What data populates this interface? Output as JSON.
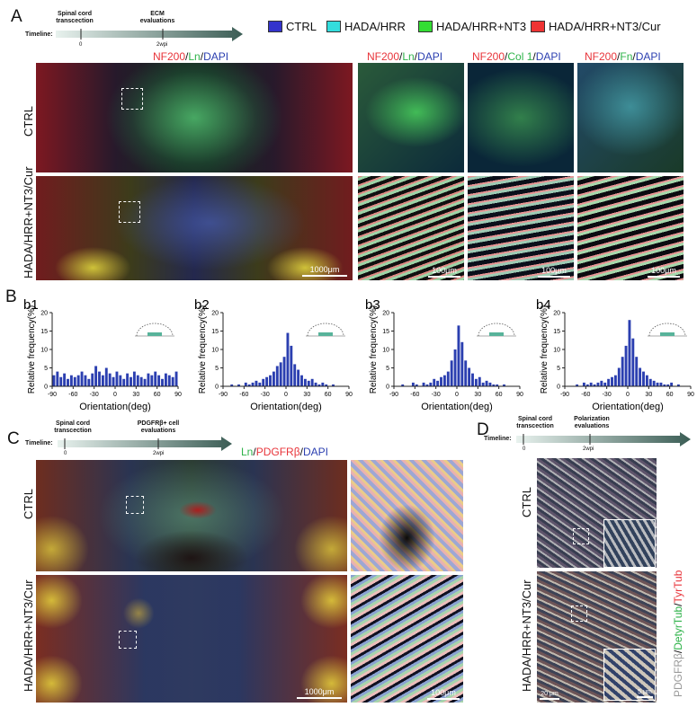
{
  "panels": {
    "A": "A",
    "B": "B",
    "C": "C",
    "D": "D"
  },
  "timeline_a": {
    "label": "Timeline:",
    "event1": "Spinal cord\ntranscection",
    "event2": "ECM\nevaluations",
    "tick0": "0",
    "tick1": "2wpi"
  },
  "timeline_c": {
    "label": "Timeline:",
    "event1": "Spinal cord\ntranscection",
    "event2": "PDGFRβ+ cell\nevaluations",
    "tick0": "0",
    "tick1": "2wpi"
  },
  "timeline_d": {
    "label": "Timeline:",
    "event1": "Spinal cord\ntranscection",
    "event2": "Polarization\nevaluations",
    "tick0": "0",
    "tick1": "2wpi"
  },
  "legend": [
    {
      "label": "CTRL",
      "color": "#3333cc"
    },
    {
      "label": "HADA/HRR",
      "color": "#33dddd"
    },
    {
      "label": "HADA/HRR+NT3",
      "color": "#33dd33"
    },
    {
      "label": "HADA/HRR+NT3/Cur",
      "color": "#ee3333"
    }
  ],
  "rows": {
    "ctrl": "CTRL",
    "treated": "HADA/HRR+NT3/Cur"
  },
  "stains_a": {
    "main": {
      "a": "NF200",
      "b": "/",
      "c": "Ln",
      "d": "/",
      "e": "DAPI"
    },
    "col1": {
      "a": "NF200",
      "b": "/",
      "c": "Ln",
      "d": "/",
      "e": "DAPI"
    },
    "col2": {
      "a": "NF200",
      "b": "/",
      "c": "Col 1",
      "d": "/",
      "e": "DAPI"
    },
    "col3": {
      "a": "NF200",
      "b": "/",
      "c": "Fn",
      "d": "/",
      "e": "DAPI"
    }
  },
  "stain_c": {
    "a": "Ln",
    "b": "/",
    "c": "PDGFRβ",
    "d": "/",
    "e": "DAPI"
  },
  "stain_d": {
    "a": "PDGFRβ",
    "b": "/",
    "c": "DetyrTub",
    "d": "/",
    "e": "TyrTub"
  },
  "colors": {
    "red": "#e8343a",
    "green": "#2fb34a",
    "blue": "#2b3fb0",
    "grey": "#9a9a9a",
    "axis": "#222222"
  },
  "scalebars": {
    "a_main": "1000μm",
    "a_z1": "100μm",
    "a_z2": "100μm",
    "a_z3": "100μm",
    "c_main": "1000μm",
    "c_zoom": "100μm",
    "d_main": "20 μm",
    "d_inset": "5 μm"
  },
  "chart_data": [
    {
      "type": "bar",
      "panel": "b1",
      "xlabel": "Orientation(deg)",
      "ylabel": "Relative frequency(%)",
      "xlim": [
        -90,
        90
      ],
      "ylim": [
        0,
        20
      ],
      "xticks": [
        -90,
        -60,
        -30,
        0,
        30,
        60,
        90
      ],
      "yticks": [
        0,
        5,
        10,
        15,
        20
      ],
      "x": [
        -90,
        -85,
        -80,
        -75,
        -70,
        -65,
        -60,
        -55,
        -50,
        -45,
        -40,
        -35,
        -30,
        -25,
        -20,
        -15,
        -10,
        -5,
        0,
        5,
        10,
        15,
        20,
        25,
        30,
        35,
        40,
        45,
        50,
        55,
        60,
        65,
        70,
        75,
        80,
        85
      ],
      "values": [
        3,
        4,
        2.5,
        3.5,
        2,
        3,
        2.5,
        3,
        4,
        3,
        2,
        3.5,
        5.5,
        4,
        3,
        5,
        3.5,
        2.5,
        4,
        3,
        2,
        3.5,
        2.5,
        4,
        3,
        2.5,
        2,
        3.5,
        3,
        4,
        3,
        2,
        3.5,
        3,
        2.5,
        4
      ]
    },
    {
      "type": "bar",
      "panel": "b2",
      "xlabel": "Orientation(deg)",
      "ylabel": "Relative frequency(%)",
      "xlim": [
        -90,
        90
      ],
      "ylim": [
        0,
        20
      ],
      "xticks": [
        -90,
        -60,
        -30,
        0,
        30,
        60,
        90
      ],
      "yticks": [
        0,
        5,
        10,
        15,
        20
      ],
      "x": [
        -90,
        -85,
        -80,
        -75,
        -70,
        -65,
        -60,
        -55,
        -50,
        -45,
        -40,
        -35,
        -30,
        -25,
        -20,
        -15,
        -10,
        -5,
        0,
        5,
        10,
        15,
        20,
        25,
        30,
        35,
        40,
        45,
        50,
        55,
        60,
        65,
        70,
        75,
        80,
        85
      ],
      "values": [
        0,
        0,
        0.5,
        0,
        0.5,
        0,
        1,
        0.5,
        1,
        1.5,
        1,
        2,
        2.5,
        3,
        4,
        5.5,
        6.5,
        8,
        14.5,
        11,
        6,
        4.5,
        3,
        2,
        1.5,
        2,
        1,
        0.5,
        1,
        0.5,
        0,
        0.5,
        0,
        0,
        0,
        0
      ]
    },
    {
      "type": "bar",
      "panel": "b3",
      "xlabel": "Orientation(deg)",
      "ylabel": "Relative frequency(%)",
      "xlim": [
        -90,
        90
      ],
      "ylim": [
        0,
        20
      ],
      "xticks": [
        -90,
        -60,
        -30,
        0,
        30,
        60,
        90
      ],
      "yticks": [
        0,
        5,
        10,
        15,
        20
      ],
      "x": [
        -90,
        -85,
        -80,
        -75,
        -70,
        -65,
        -60,
        -55,
        -50,
        -45,
        -40,
        -35,
        -30,
        -25,
        -20,
        -15,
        -10,
        -5,
        0,
        5,
        10,
        15,
        20,
        25,
        30,
        35,
        40,
        45,
        50,
        55,
        60,
        65,
        70,
        75,
        80,
        85
      ],
      "values": [
        0,
        0,
        0.5,
        0,
        0,
        1,
        0.5,
        0,
        1,
        0.5,
        1,
        2,
        1.5,
        2.5,
        3,
        4,
        7,
        10,
        16.5,
        12,
        7,
        5,
        3.5,
        2,
        2.5,
        1,
        1.5,
        1,
        0.5,
        0.5,
        0,
        0.5,
        0,
        0,
        0,
        0
      ]
    },
    {
      "type": "bar",
      "panel": "b4",
      "xlabel": "Orientation(deg)",
      "ylabel": "Relative frequency(%)",
      "xlim": [
        -90,
        90
      ],
      "ylim": [
        0,
        20
      ],
      "xticks": [
        -90,
        -60,
        -30,
        0,
        30,
        60,
        90
      ],
      "yticks": [
        0,
        5,
        10,
        15,
        20
      ],
      "x": [
        -90,
        -85,
        -80,
        -75,
        -70,
        -65,
        -60,
        -55,
        -50,
        -45,
        -40,
        -35,
        -30,
        -25,
        -20,
        -15,
        -10,
        -5,
        0,
        5,
        10,
        15,
        20,
        25,
        30,
        35,
        40,
        45,
        50,
        55,
        60,
        65,
        70,
        75,
        80,
        85
      ],
      "values": [
        0,
        0,
        0,
        0.5,
        0,
        1,
        0.5,
        1,
        0.5,
        1,
        1.5,
        1,
        2,
        2.5,
        3,
        5,
        8,
        11,
        18,
        13,
        8,
        5,
        4,
        3,
        2,
        1.5,
        1,
        1,
        0.5,
        0.5,
        1,
        0,
        0.5,
        0,
        0,
        0
      ]
    }
  ]
}
